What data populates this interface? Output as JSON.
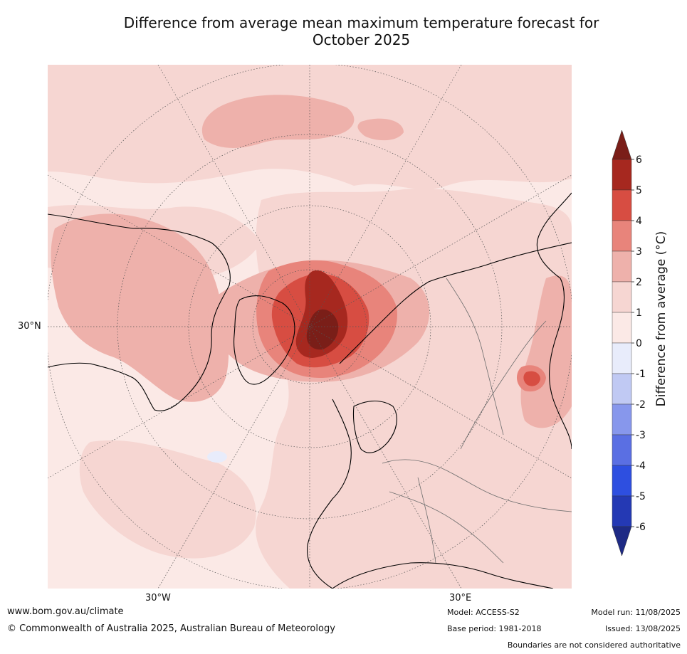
{
  "title": {
    "line1": "Difference from average mean maximum temperature forecast for",
    "line2": "October 2025"
  },
  "map": {
    "lat_label_left": "30°N",
    "lon_label_left": "30°W",
    "lon_label_right": "30°E",
    "ocean_color": "#fbe9e6"
  },
  "colorbar": {
    "label": "Difference from average (°C)",
    "ticks": [
      "6",
      "5",
      "4",
      "3",
      "2",
      "1",
      "0",
      "-1",
      "-2",
      "-3",
      "-4",
      "-5",
      "-6"
    ],
    "colors_top_to_bottom": [
      "#7a1e18",
      "#a6281f",
      "#d74d42",
      "#e8847b",
      "#eeb1ab",
      "#f6d6d2",
      "#fbe9e6",
      "#e8ecfb",
      "#c0c9f3",
      "#8797ec",
      "#5a6fe3",
      "#2e4fe0",
      "#2439b4",
      "#1e2a85"
    ]
  },
  "footer": {
    "website": "www.bom.gov.au/climate",
    "copyright": "© Commonwealth of Australia 2025, Australian Bureau of Meteorology",
    "model": "Model: ACCESS-S2",
    "base_period": "Base period: 1981-2018",
    "model_run": "Model run: 11/08/2025",
    "issued": "Issued: 13/08/2025",
    "disclaimer": "Boundaries are not considered authoritative"
  }
}
